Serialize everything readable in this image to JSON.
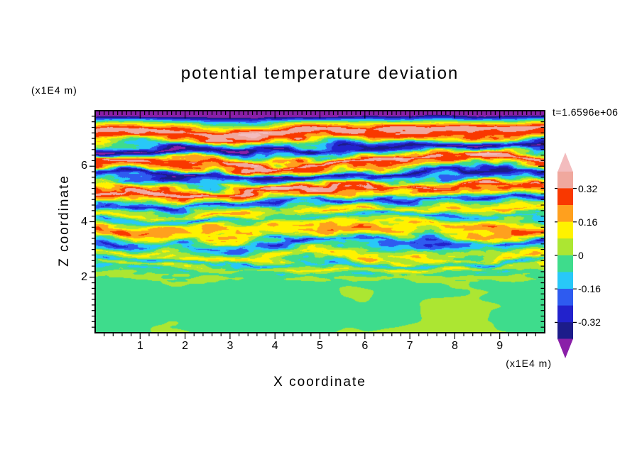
{
  "title": "potential temperature deviation",
  "annotations": {
    "timestamp": "t=1.6596e+06",
    "y_unit": "(x1E4 m)",
    "x_unit": "(x1E4 m)"
  },
  "axes": {
    "x_label": "X coordinate",
    "y_label": "Z coordinate",
    "x_ticks": [
      1,
      2,
      3,
      4,
      5,
      6,
      7,
      8,
      9
    ],
    "y_ticks": [
      2,
      4,
      6
    ]
  },
  "colorbar": {
    "tick_labels": [
      "0.32",
      "0.16",
      "0",
      "-0.16",
      "-0.32"
    ],
    "tick_values": [
      0.32,
      0.16,
      0,
      -0.16,
      -0.32
    ],
    "value_min": -0.4,
    "value_max": 0.4,
    "band_step": 0.08,
    "colors_low_to_high": [
      "#8A1FA8",
      "#1C1C8A",
      "#2222CC",
      "#2E5BF0",
      "#28C8F8",
      "#3EDC8C",
      "#ACE632",
      "#FFF200",
      "#FFA01E",
      "#F93800",
      "#F0A89E",
      "#F3BCBE"
    ]
  },
  "chart_data": {
    "type": "filled_contour",
    "title": "potential temperature deviation",
    "xlabel": "X coordinate",
    "ylabel": "Z coordinate",
    "x_unit": "x1E4 m",
    "z_unit": "x1E4 m",
    "time_label": "t=1.6596e+06",
    "x_range": [
      0,
      10
    ],
    "z_range": [
      0,
      8
    ],
    "x_ticks": [
      1,
      2,
      3,
      4,
      5,
      6,
      7,
      8,
      9
    ],
    "z_ticks": [
      2,
      4,
      6
    ],
    "contour_levels": [
      -0.4,
      -0.32,
      -0.24,
      -0.16,
      -0.08,
      0,
      0.08,
      0.16,
      0.24,
      0.32,
      0.4
    ],
    "palette_low_to_high": [
      "#8A1FA8",
      "#1C1C8A",
      "#2222CC",
      "#2E5BF0",
      "#28C8F8",
      "#3EDC8C",
      "#ACE632",
      "#FFF200",
      "#FFA01E",
      "#F93800",
      "#F0A89E",
      "#F3BCBE"
    ],
    "legend_position": "right",
    "grid": false,
    "field_summary": "Stratified turbulent potential-temperature deviation field: strongly layered anomalies up to about +/-0.45 between z=2 and z=8 (x1E4 m), with salmon/red positive layers and navy/purple negative layers braided by fine yellow-green filaments; weak (+/-0.07) well-mixed green/chartreuse region below z=2 with convective plume shapes; solid dark negative strip along the very top of the domain.",
    "mean_profile_z_v": [
      [
        8.0,
        -0.46
      ],
      [
        7.8,
        -0.44
      ],
      [
        7.58,
        0.02
      ],
      [
        7.34,
        0.38
      ],
      [
        7.1,
        0.28
      ],
      [
        6.86,
        -0.1
      ],
      [
        6.62,
        -0.38
      ],
      [
        6.4,
        -0.08
      ],
      [
        6.16,
        0.37
      ],
      [
        5.94,
        0.18
      ],
      [
        5.7,
        -0.35
      ],
      [
        5.46,
        -0.06
      ],
      [
        5.22,
        0.36
      ],
      [
        4.98,
        0.12
      ],
      [
        4.76,
        -0.26
      ],
      [
        4.54,
        0.02
      ],
      [
        4.32,
        0.13
      ],
      [
        4.1,
        -0.15
      ],
      [
        3.88,
        0.07
      ],
      [
        3.66,
        0.19
      ],
      [
        3.44,
        0.08
      ],
      [
        3.22,
        -0.21
      ],
      [
        3.0,
        -0.04
      ],
      [
        2.8,
        0.11
      ],
      [
        2.6,
        -0.13
      ],
      [
        2.4,
        0.07
      ],
      [
        2.2,
        -0.05
      ],
      [
        2.0,
        0.03
      ],
      [
        1.6,
        -0.03
      ],
      [
        1.0,
        0.02
      ],
      [
        0.5,
        -0.04
      ],
      [
        0.0,
        -0.02
      ]
    ],
    "noise_params": {
      "seeds": [
        11,
        23,
        37,
        51,
        67
      ],
      "warp_base": 0.18,
      "warp_mid": 0.55,
      "fine_base": 0.05,
      "fine_amp": 0.1,
      "band_amp": 0.06,
      "blob_amp": 0.062,
      "blob_offset": -0.012
    }
  }
}
